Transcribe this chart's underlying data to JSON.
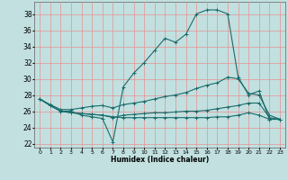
{
  "xlabel": "Humidex (Indice chaleur)",
  "bg_color": "#c2e0e0",
  "line_color": "#1a6b6b",
  "grid_color": "#e89090",
  "xlim": [
    -0.5,
    23.5
  ],
  "ylim": [
    21.5,
    39.5
  ],
  "yticks": [
    22,
    24,
    26,
    28,
    30,
    32,
    34,
    36,
    38
  ],
  "xticks": [
    0,
    1,
    2,
    3,
    4,
    5,
    6,
    7,
    8,
    9,
    10,
    11,
    12,
    13,
    14,
    15,
    16,
    17,
    18,
    19,
    20,
    21,
    22,
    23
  ],
  "curves": [
    {
      "x": [
        0,
        1,
        2,
        3,
        4,
        5,
        6,
        7,
        8,
        9,
        10,
        11,
        12,
        13,
        14,
        15,
        16,
        17,
        18,
        19,
        20,
        21,
        22,
        23
      ],
      "y": [
        27.5,
        26.7,
        26.0,
        26.0,
        25.5,
        25.3,
        25.1,
        22.2,
        29.0,
        30.7,
        32.0,
        33.5,
        35.0,
        34.5,
        35.5,
        38.0,
        38.5,
        38.5,
        38.0,
        30.2,
        28.0,
        28.5,
        25.0,
        25.0
      ]
    },
    {
      "x": [
        0,
        1,
        2,
        3,
        4,
        5,
        6,
        7,
        8,
        9,
        10,
        11,
        12,
        13,
        14,
        15,
        16,
        17,
        18,
        19,
        20,
        21,
        22,
        23
      ],
      "y": [
        27.5,
        26.8,
        26.2,
        26.2,
        26.4,
        26.6,
        26.7,
        26.4,
        26.8,
        27.0,
        27.2,
        27.5,
        27.8,
        28.0,
        28.3,
        28.8,
        29.2,
        29.5,
        30.2,
        30.0,
        28.2,
        28.0,
        25.5,
        25.0
      ]
    },
    {
      "x": [
        0,
        1,
        2,
        3,
        4,
        5,
        6,
        7,
        8,
        9,
        10,
        11,
        12,
        13,
        14,
        15,
        16,
        17,
        18,
        19,
        20,
        21,
        22,
        23
      ],
      "y": [
        27.5,
        26.7,
        26.0,
        25.8,
        25.7,
        25.6,
        25.5,
        25.2,
        25.5,
        25.6,
        25.7,
        25.8,
        25.8,
        25.9,
        26.0,
        26.0,
        26.1,
        26.3,
        26.5,
        26.7,
        27.0,
        27.0,
        25.2,
        25.0
      ]
    },
    {
      "x": [
        0,
        1,
        2,
        3,
        4,
        5,
        6,
        7,
        8,
        9,
        10,
        11,
        12,
        13,
        14,
        15,
        16,
        17,
        18,
        19,
        20,
        21,
        22,
        23
      ],
      "y": [
        27.5,
        26.7,
        26.0,
        25.8,
        25.7,
        25.6,
        25.5,
        25.3,
        25.2,
        25.2,
        25.2,
        25.2,
        25.2,
        25.2,
        25.2,
        25.2,
        25.2,
        25.3,
        25.3,
        25.5,
        25.8,
        25.5,
        25.0,
        25.0
      ]
    }
  ]
}
